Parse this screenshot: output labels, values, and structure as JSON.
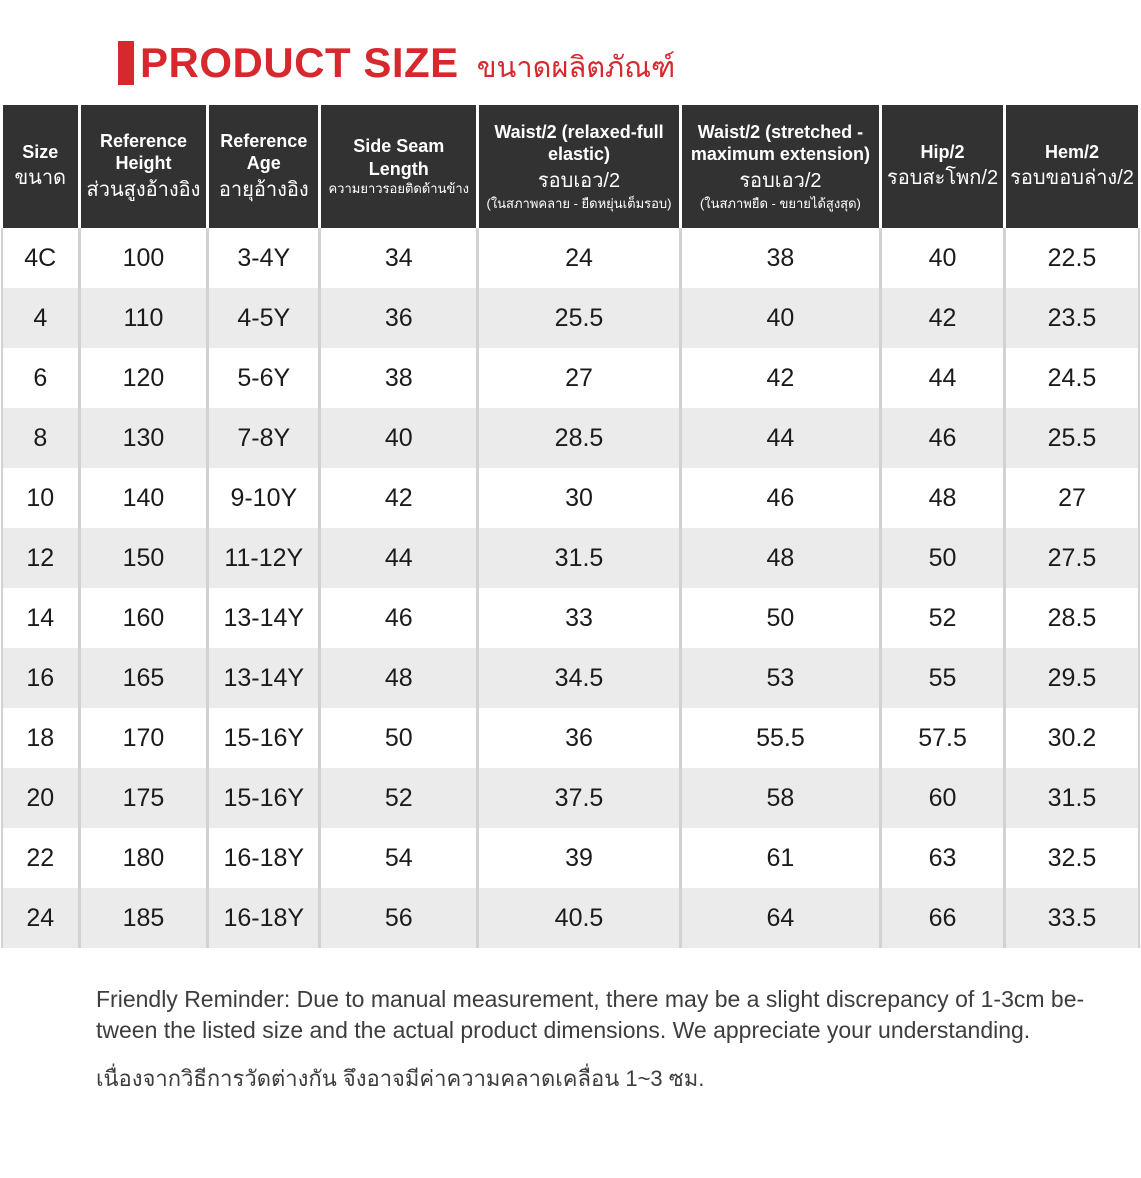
{
  "colors": {
    "accent": "#d7282d",
    "header_bg": "#323232",
    "stripe": "#ebebeb"
  },
  "title": {
    "en": "PRODUCT SIZE",
    "th": "ขนาดผลิตภัณฑ์"
  },
  "table": {
    "columns": [
      {
        "en": "Size",
        "th": "ขนาด"
      },
      {
        "en": "Reference Height",
        "th": "ส่วนสูงอ้างอิง"
      },
      {
        "en": "Reference Age",
        "th": "อายุอ้างอิง"
      },
      {
        "en": "Side Seam Length",
        "th_small": "ความยาวรอยติดด้านข้าง"
      },
      {
        "en": "Waist/2 (relaxed-full elastic)",
        "th": "รอบเอว/2",
        "th_small": "(ในสภาพคลาย - ยืดหยุ่นเต็มรอบ)"
      },
      {
        "en": "Waist/2 (stretched - maximum extension)",
        "th": "รอบเอว/2",
        "th_small": "(ในสภาพยืด - ขยายได้สูงสุด)"
      },
      {
        "en": "Hip/2",
        "th": "รอบสะโพก/2"
      },
      {
        "en": "Hem/2",
        "th": "รอบขอบล่าง/2"
      }
    ],
    "rows": [
      [
        "4C",
        "100",
        "3-4Y",
        "34",
        "24",
        "38",
        "40",
        "22.5"
      ],
      [
        "4",
        "110",
        "4-5Y",
        "36",
        "25.5",
        "40",
        "42",
        "23.5"
      ],
      [
        "6",
        "120",
        "5-6Y",
        "38",
        "27",
        "42",
        "44",
        "24.5"
      ],
      [
        "8",
        "130",
        "7-8Y",
        "40",
        "28.5",
        "44",
        "46",
        "25.5"
      ],
      [
        "10",
        "140",
        "9-10Y",
        "42",
        "30",
        "46",
        "48",
        "27"
      ],
      [
        "12",
        "150",
        "11-12Y",
        "44",
        "31.5",
        "48",
        "50",
        "27.5"
      ],
      [
        "14",
        "160",
        "13-14Y",
        "46",
        "33",
        "50",
        "52",
        "28.5"
      ],
      [
        "16",
        "165",
        "13-14Y",
        "48",
        "34.5",
        "53",
        "55",
        "29.5"
      ],
      [
        "18",
        "170",
        "15-16Y",
        "50",
        "36",
        "55.5",
        "57.5",
        "30.2"
      ],
      [
        "20",
        "175",
        "15-16Y",
        "52",
        "37.5",
        "58",
        "60",
        "31.5"
      ],
      [
        "22",
        "180",
        "16-18Y",
        "54",
        "39",
        "61",
        "63",
        "32.5"
      ],
      [
        "24",
        "185",
        "16-18Y",
        "56",
        "40.5",
        "64",
        "66",
        "33.5"
      ]
    ]
  },
  "notes": {
    "en": "Friendly Reminder: Due to manual measurement, there may be a slight discrepancy of 1-3cm be-\ntween the listed size and the actual product dimensions. We appreciate your understanding.",
    "th": "เนื่องจากวิธีการวัดต่างกัน จึงอาจมีค่าความคลาดเคลื่อน 1~3 ซม."
  }
}
